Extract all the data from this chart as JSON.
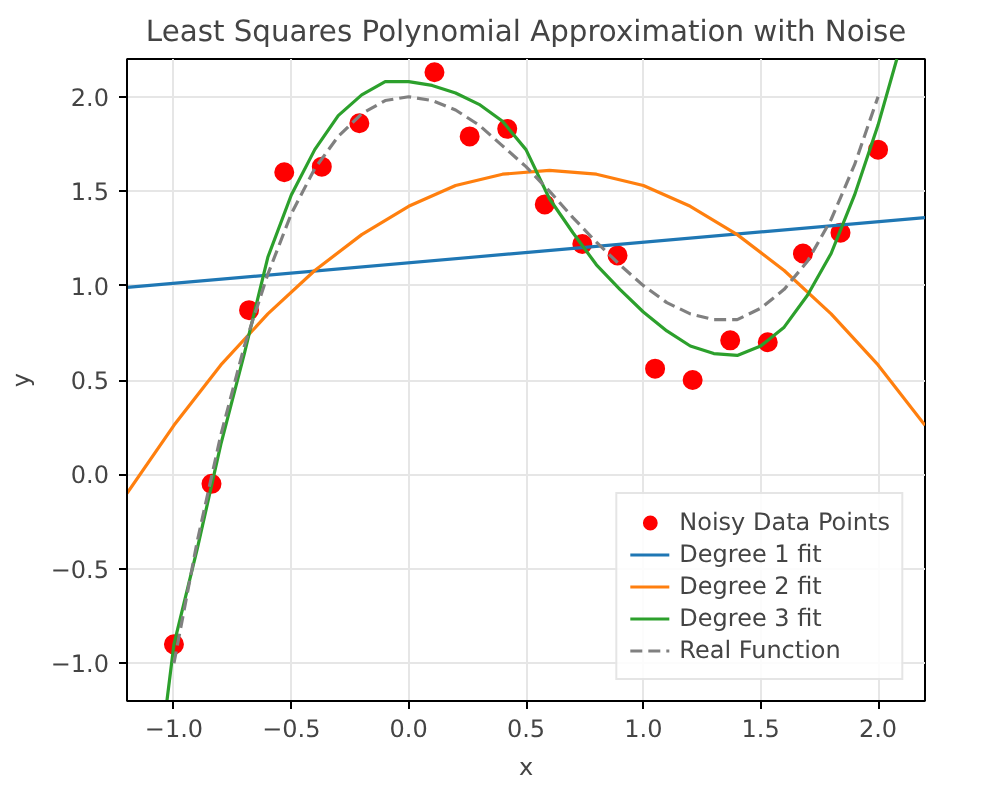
{
  "chart_data": {
    "type": "line",
    "title": "Least Squares Polynomial Approximation with Noise",
    "xlabel": "x",
    "ylabel": "y",
    "xlim": [
      -1.2,
      2.2
    ],
    "ylim": [
      -1.2,
      2.2
    ],
    "xticks": [
      {
        "value": -1.0,
        "label": "−1.0"
      },
      {
        "value": -0.5,
        "label": "−0.5"
      },
      {
        "value": 0.0,
        "label": "0.0"
      },
      {
        "value": 0.5,
        "label": "0.5"
      },
      {
        "value": 1.0,
        "label": "1.0"
      },
      {
        "value": 1.5,
        "label": "1.5"
      },
      {
        "value": 2.0,
        "label": "2.0"
      }
    ],
    "yticks": [
      {
        "value": -1.0,
        "label": "−1.0"
      },
      {
        "value": -0.5,
        "label": "−0.5"
      },
      {
        "value": 0.0,
        "label": "0.0"
      },
      {
        "value": 0.5,
        "label": "0.5"
      },
      {
        "value": 1.0,
        "label": "1.0"
      },
      {
        "value": 1.5,
        "label": "1.5"
      },
      {
        "value": 2.0,
        "label": "2.0"
      }
    ],
    "grid": true,
    "legend": "bottom right",
    "series": [
      {
        "name": "Noisy Data Points",
        "type": "scatter",
        "marker": "circle",
        "color": "#ff0000",
        "x": [
          -1.0,
          -0.84,
          -0.68,
          -0.53,
          -0.37,
          -0.21,
          0.11,
          0.26,
          0.42,
          0.58,
          0.74,
          0.89,
          1.05,
          1.21,
          1.37,
          1.53,
          1.68,
          1.84,
          2.0
        ],
        "values": [
          -0.9,
          -0.05,
          0.87,
          1.6,
          1.63,
          1.86,
          2.13,
          1.79,
          1.83,
          1.43,
          1.22,
          1.16,
          0.56,
          0.5,
          0.71,
          0.7,
          1.17,
          1.28,
          1.72
        ]
      },
      {
        "name": "Degree 1 fit",
        "line_style": "solid",
        "color": "#1f77b4",
        "x": [
          -1.2,
          2.2
        ],
        "values": [
          0.99,
          1.36
        ]
      },
      {
        "name": "Degree 2 fit",
        "line_style": "solid",
        "color": "#ff7f0e",
        "x": [
          -1.2,
          -1.0,
          -0.8,
          -0.6,
          -0.4,
          -0.2,
          0.0,
          0.2,
          0.4,
          0.6,
          0.8,
          1.0,
          1.2,
          1.4,
          1.6,
          1.8,
          2.0,
          2.2
        ],
        "values": [
          -0.1,
          0.26,
          0.58,
          0.85,
          1.08,
          1.27,
          1.42,
          1.53,
          1.59,
          1.61,
          1.59,
          1.53,
          1.42,
          1.27,
          1.08,
          0.85,
          0.58,
          0.26
        ]
      },
      {
        "name": "Degree 3 fit",
        "line_style": "solid",
        "color": "#2ca02c",
        "x": [
          -1.03,
          -1.0,
          -0.9,
          -0.8,
          -0.7,
          -0.6,
          -0.5,
          -0.4,
          -0.3,
          -0.2,
          -0.1,
          0.0,
          0.1,
          0.2,
          0.3,
          0.4,
          0.5,
          0.6,
          0.7,
          0.8,
          0.9,
          1.0,
          1.1,
          1.2,
          1.3,
          1.4,
          1.5,
          1.6,
          1.7,
          1.8,
          1.9,
          2.0,
          2.08
        ],
        "values": [
          -1.2,
          -0.9,
          -0.39,
          0.16,
          0.64,
          1.15,
          1.48,
          1.72,
          1.9,
          2.01,
          2.08,
          2.08,
          2.06,
          2.02,
          1.96,
          1.87,
          1.72,
          1.46,
          1.28,
          1.11,
          0.98,
          0.86,
          0.76,
          0.68,
          0.64,
          0.63,
          0.68,
          0.78,
          0.95,
          1.17,
          1.48,
          1.85,
          2.2
        ]
      },
      {
        "name": "Real Function",
        "line_style": "dashed",
        "color": "#808080",
        "x": [
          -1.0,
          -0.9,
          -0.8,
          -0.7,
          -0.6,
          -0.5,
          -0.4,
          -0.3,
          -0.2,
          -0.1,
          0.0,
          0.1,
          0.2,
          0.3,
          0.4,
          0.5,
          0.6,
          0.7,
          0.8,
          0.9,
          1.0,
          1.1,
          1.2,
          1.3,
          1.4,
          1.5,
          1.6,
          1.7,
          1.8,
          1.9,
          2.0
        ],
        "values": [
          -1.0,
          -0.35,
          0.21,
          0.68,
          1.06,
          1.38,
          1.62,
          1.79,
          1.91,
          1.98,
          2.0,
          1.98,
          1.93,
          1.85,
          1.74,
          1.63,
          1.5,
          1.36,
          1.23,
          1.11,
          1.0,
          0.91,
          0.85,
          0.82,
          0.82,
          0.88,
          0.98,
          1.13,
          1.35,
          1.64,
          2.0
        ]
      }
    ]
  }
}
